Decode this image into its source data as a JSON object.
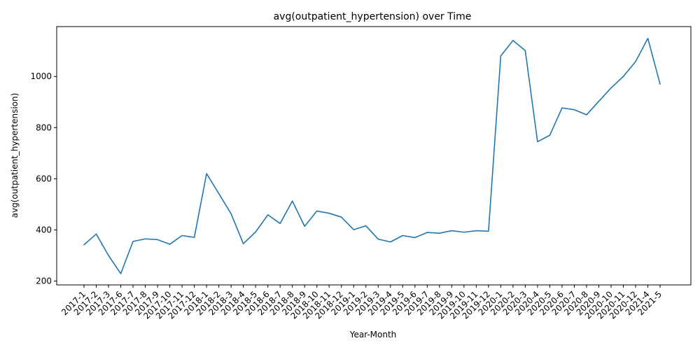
{
  "chart_data": {
    "type": "line",
    "title": "avg(outpatient_hypertension) over Time",
    "xlabel": "Year-Month",
    "ylabel": "avg(outpatient_hypertension)",
    "ylim": [
      185,
      1195
    ],
    "yticks": [
      200,
      400,
      600,
      800,
      1000
    ],
    "grid": false,
    "line_color": "#1f77b4",
    "categories": [
      "2017-1",
      "2017-2",
      "2017-3",
      "2017-6",
      "2017-7",
      "2017-8",
      "2017-9",
      "2017-10",
      "2017-11",
      "2017-12",
      "2018-1",
      "2018-2",
      "2018-3",
      "2018-4",
      "2018-5",
      "2018-6",
      "2018-7",
      "2018-8",
      "2018-9",
      "2018-10",
      "2018-11",
      "2018-12",
      "2019-1",
      "2019-2",
      "2019-3",
      "2019-4",
      "2019-5",
      "2019-6",
      "2019-7",
      "2019-8",
      "2019-9",
      "2019-10",
      "2019-11",
      "2019-12",
      "2020-1",
      "2020-2",
      "2020-3",
      "2020-4",
      "2020-5",
      "2020-6",
      "2020-7",
      "2020-8",
      "2020-9",
      "2020-10",
      "2020-11",
      "2020-12",
      "2021-4",
      "2021-5"
    ],
    "values": [
      342,
      384,
      300,
      229,
      355,
      365,
      362,
      344,
      378,
      371,
      620,
      542,
      463,
      346,
      392,
      459,
      425,
      513,
      414,
      474,
      465,
      450,
      401,
      416,
      364,
      353,
      378,
      370,
      390,
      387,
      397,
      391,
      397,
      395,
      1080,
      1141,
      1101,
      745,
      770,
      877,
      870,
      850,
      903,
      955,
      1000,
      1058,
      1149,
      970
    ]
  }
}
